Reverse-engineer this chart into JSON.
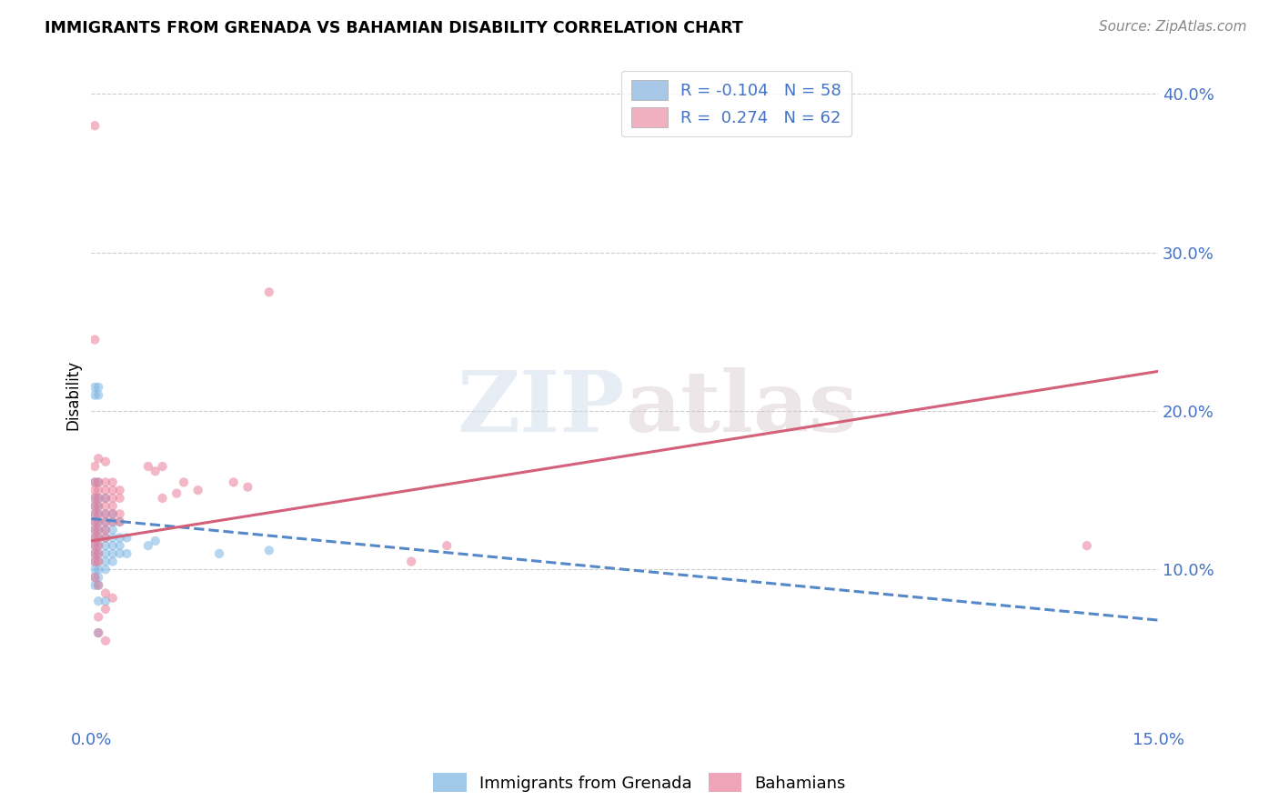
{
  "title": "IMMIGRANTS FROM GRENADA VS BAHAMIAN DISABILITY CORRELATION CHART",
  "source": "Source: ZipAtlas.com",
  "ylabel_label": "Disability",
  "xlim": [
    0.0,
    0.15
  ],
  "ylim": [
    0.0,
    0.42
  ],
  "ytick_positions": [
    0.1,
    0.2,
    0.3,
    0.4
  ],
  "ytick_labels": [
    "10.0%",
    "20.0%",
    "30.0%",
    "40.0%"
  ],
  "xtick_positions": [
    0.0,
    0.15
  ],
  "xtick_labels": [
    "0.0%",
    "15.0%"
  ],
  "grenada_scatter": [
    [
      0.0005,
      0.215
    ],
    [
      0.001,
      0.215
    ],
    [
      0.0005,
      0.21
    ],
    [
      0.001,
      0.21
    ],
    [
      0.0005,
      0.155
    ],
    [
      0.001,
      0.155
    ],
    [
      0.0005,
      0.145
    ],
    [
      0.001,
      0.145
    ],
    [
      0.002,
      0.145
    ],
    [
      0.0005,
      0.14
    ],
    [
      0.001,
      0.14
    ],
    [
      0.0005,
      0.135
    ],
    [
      0.001,
      0.135
    ],
    [
      0.002,
      0.135
    ],
    [
      0.003,
      0.135
    ],
    [
      0.0005,
      0.13
    ],
    [
      0.001,
      0.13
    ],
    [
      0.002,
      0.13
    ],
    [
      0.003,
      0.13
    ],
    [
      0.004,
      0.13
    ],
    [
      0.0005,
      0.125
    ],
    [
      0.001,
      0.125
    ],
    [
      0.002,
      0.125
    ],
    [
      0.003,
      0.125
    ],
    [
      0.0005,
      0.12
    ],
    [
      0.001,
      0.12
    ],
    [
      0.002,
      0.12
    ],
    [
      0.003,
      0.12
    ],
    [
      0.004,
      0.12
    ],
    [
      0.005,
      0.12
    ],
    [
      0.0005,
      0.115
    ],
    [
      0.001,
      0.115
    ],
    [
      0.002,
      0.115
    ],
    [
      0.003,
      0.115
    ],
    [
      0.004,
      0.115
    ],
    [
      0.0005,
      0.11
    ],
    [
      0.001,
      0.11
    ],
    [
      0.002,
      0.11
    ],
    [
      0.003,
      0.11
    ],
    [
      0.004,
      0.11
    ],
    [
      0.005,
      0.11
    ],
    [
      0.0005,
      0.105
    ],
    [
      0.001,
      0.105
    ],
    [
      0.002,
      0.105
    ],
    [
      0.003,
      0.105
    ],
    [
      0.0005,
      0.1
    ],
    [
      0.001,
      0.1
    ],
    [
      0.002,
      0.1
    ],
    [
      0.0005,
      0.095
    ],
    [
      0.001,
      0.095
    ],
    [
      0.0005,
      0.09
    ],
    [
      0.001,
      0.09
    ],
    [
      0.001,
      0.08
    ],
    [
      0.002,
      0.08
    ],
    [
      0.001,
      0.06
    ],
    [
      0.008,
      0.115
    ],
    [
      0.009,
      0.118
    ],
    [
      0.018,
      0.11
    ],
    [
      0.025,
      0.112
    ]
  ],
  "bahamian_scatter": [
    [
      0.0005,
      0.38
    ],
    [
      0.0005,
      0.245
    ],
    [
      0.0005,
      0.165
    ],
    [
      0.001,
      0.17
    ],
    [
      0.002,
      0.168
    ],
    [
      0.008,
      0.165
    ],
    [
      0.009,
      0.162
    ],
    [
      0.01,
      0.165
    ],
    [
      0.0005,
      0.155
    ],
    [
      0.001,
      0.155
    ],
    [
      0.002,
      0.155
    ],
    [
      0.003,
      0.155
    ],
    [
      0.0005,
      0.15
    ],
    [
      0.001,
      0.15
    ],
    [
      0.002,
      0.15
    ],
    [
      0.003,
      0.15
    ],
    [
      0.004,
      0.15
    ],
    [
      0.0005,
      0.145
    ],
    [
      0.001,
      0.145
    ],
    [
      0.002,
      0.145
    ],
    [
      0.003,
      0.145
    ],
    [
      0.004,
      0.145
    ],
    [
      0.0005,
      0.14
    ],
    [
      0.001,
      0.14
    ],
    [
      0.002,
      0.14
    ],
    [
      0.003,
      0.14
    ],
    [
      0.0005,
      0.135
    ],
    [
      0.001,
      0.135
    ],
    [
      0.002,
      0.135
    ],
    [
      0.003,
      0.135
    ],
    [
      0.004,
      0.135
    ],
    [
      0.0005,
      0.13
    ],
    [
      0.001,
      0.13
    ],
    [
      0.002,
      0.13
    ],
    [
      0.003,
      0.13
    ],
    [
      0.004,
      0.13
    ],
    [
      0.0005,
      0.125
    ],
    [
      0.001,
      0.125
    ],
    [
      0.002,
      0.125
    ],
    [
      0.0005,
      0.12
    ],
    [
      0.001,
      0.12
    ],
    [
      0.002,
      0.12
    ],
    [
      0.0005,
      0.115
    ],
    [
      0.001,
      0.115
    ],
    [
      0.0005,
      0.11
    ],
    [
      0.001,
      0.11
    ],
    [
      0.0005,
      0.105
    ],
    [
      0.001,
      0.105
    ],
    [
      0.0005,
      0.095
    ],
    [
      0.001,
      0.09
    ],
    [
      0.002,
      0.085
    ],
    [
      0.003,
      0.082
    ],
    [
      0.002,
      0.075
    ],
    [
      0.001,
      0.07
    ],
    [
      0.001,
      0.06
    ],
    [
      0.002,
      0.055
    ],
    [
      0.013,
      0.155
    ],
    [
      0.015,
      0.15
    ],
    [
      0.02,
      0.155
    ],
    [
      0.022,
      0.152
    ],
    [
      0.01,
      0.145
    ],
    [
      0.012,
      0.148
    ],
    [
      0.025,
      0.275
    ],
    [
      0.05,
      0.115
    ],
    [
      0.14,
      0.115
    ],
    [
      0.045,
      0.105
    ]
  ],
  "grenada_line_x": [
    0.0,
    0.15
  ],
  "grenada_line_y": [
    0.132,
    0.068
  ],
  "bahamian_line_x": [
    0.0,
    0.15
  ],
  "bahamian_line_y": [
    0.118,
    0.225
  ],
  "scatter_alpha": 0.55,
  "scatter_size": 55,
  "grenada_color": "#7ab3e0",
  "bahamian_color": "#e87f9a",
  "grenada_line_color": "#5588c8",
  "bahamian_line_color": "#d4607a",
  "watermark_zip": "ZIP",
  "watermark_atlas": "atlas",
  "bg_color": "#ffffff",
  "grid_color": "#cccccc",
  "tick_color": "#4472c4",
  "legend_patch_grenada": "#a8c8e8",
  "legend_patch_bahamian": "#f0b0c0",
  "legend_text_color": "#4472c4"
}
